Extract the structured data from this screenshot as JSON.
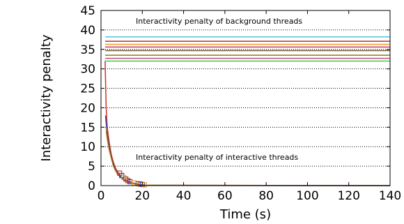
{
  "chart_data": {
    "type": "line",
    "xlabel": "Time (s)",
    "ylabel": "Interactivity penalty",
    "xlim": [
      0,
      140
    ],
    "ylim": [
      0,
      45
    ],
    "xticks": [
      "0",
      "20",
      "40",
      "60",
      "80",
      "100",
      "120",
      "140"
    ],
    "yticks": [
      "0",
      "5",
      "10",
      "15",
      "20",
      "25",
      "30",
      "35",
      "40",
      "45"
    ],
    "grid": "horizontal dotted",
    "annotations": [
      "Interactivity penalty of background threads",
      "Interactivity penalty of interactive threads"
    ],
    "background_series": [
      {
        "y": 38.2,
        "color": "#4fc3d8"
      },
      {
        "y": 37.1,
        "color": "#b03030"
      },
      {
        "y": 36.3,
        "color": "#e8a020"
      },
      {
        "y": 35.6,
        "color": "#d03060"
      },
      {
        "y": 34.7,
        "color": "#7a5a30"
      },
      {
        "y": 33.5,
        "color": "#808020"
      },
      {
        "y": 32.7,
        "color": "#c05080"
      },
      {
        "y": 32.0,
        "color": "#40d040"
      }
    ],
    "interactive_series": [
      {
        "color": "#d03020",
        "points": [
          [
            2,
            32
          ],
          [
            2.5,
            20
          ],
          [
            3,
            15
          ],
          [
            4,
            11
          ],
          [
            5,
            8
          ],
          [
            6,
            6
          ],
          [
            7,
            4.5
          ],
          [
            8,
            3.6
          ],
          [
            9,
            2.8
          ],
          [
            10,
            2.2
          ],
          [
            11,
            1.8
          ],
          [
            12,
            1.4
          ],
          [
            14,
            1.0
          ],
          [
            16,
            0.6
          ],
          [
            18,
            0.3
          ],
          [
            20,
            0.15
          ],
          [
            22,
            0.05
          ],
          [
            140,
            0
          ]
        ]
      },
      {
        "color": "#3040c0",
        "points": [
          [
            2.2,
            18
          ],
          [
            3,
            13
          ],
          [
            4,
            10
          ],
          [
            5,
            7
          ],
          [
            6,
            5.5
          ],
          [
            7,
            4
          ],
          [
            8,
            3.2
          ],
          [
            9,
            2.6
          ],
          [
            11,
            1.6
          ],
          [
            13,
            1.1
          ],
          [
            15,
            0.7
          ],
          [
            17,
            0.4
          ],
          [
            19,
            0.2
          ],
          [
            21,
            0.05
          ],
          [
            140,
            0
          ]
        ]
      },
      {
        "color": "#e8a020",
        "points": [
          [
            2.4,
            15
          ],
          [
            3,
            12
          ],
          [
            4,
            9
          ],
          [
            5,
            7
          ],
          [
            6,
            5
          ],
          [
            7,
            3.8
          ],
          [
            9,
            2.4
          ],
          [
            11,
            1.5
          ],
          [
            14,
            0.8
          ],
          [
            18,
            0.3
          ],
          [
            22,
            0.1
          ],
          [
            140,
            0
          ]
        ]
      },
      {
        "color": "#7a5a30",
        "points": [
          [
            2.6,
            14
          ],
          [
            4,
            9.5
          ],
          [
            6,
            5.2
          ],
          [
            8,
            3
          ],
          [
            10,
            1.9
          ],
          [
            13,
            1
          ],
          [
            17,
            0.4
          ],
          [
            21,
            0.1
          ],
          [
            140,
            0
          ]
        ]
      }
    ],
    "interactive_markers": [
      {
        "x": 9,
        "y": 3.2,
        "color": "#d03020"
      },
      {
        "x": 10,
        "y": 2.6,
        "color": "#3040c0"
      },
      {
        "x": 11,
        "y": 2.1,
        "color": "#e8a020"
      },
      {
        "x": 12,
        "y": 1.7,
        "color": "#7a5a30"
      },
      {
        "x": 13,
        "y": 1.3,
        "color": "#d03020"
      },
      {
        "x": 14,
        "y": 1.0,
        "color": "#3040c0"
      },
      {
        "x": 16,
        "y": 0.7,
        "color": "#e8a020"
      },
      {
        "x": 18,
        "y": 0.5,
        "color": "#7a5a30"
      },
      {
        "x": 19,
        "y": 0.4,
        "color": "#d03020"
      },
      {
        "x": 20,
        "y": 0.3,
        "color": "#3040c0"
      },
      {
        "x": 21,
        "y": 0.2,
        "color": "#e8a020"
      }
    ]
  }
}
